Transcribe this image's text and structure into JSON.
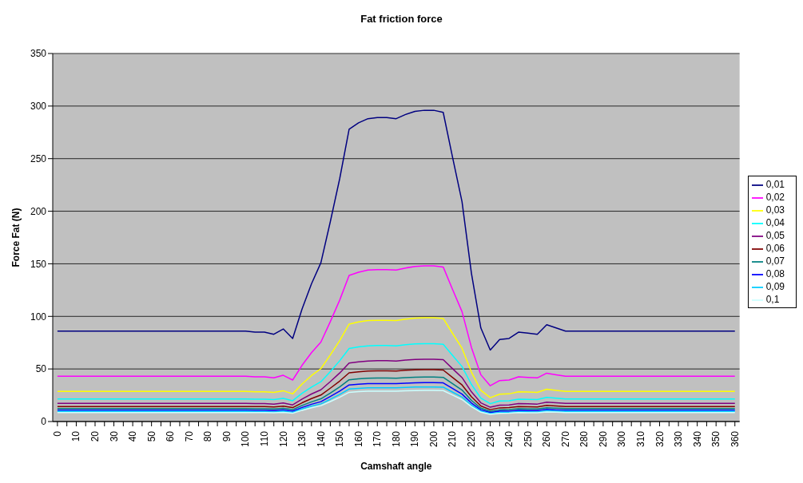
{
  "chart_data": {
    "type": "line",
    "title": "Fat friction force",
    "xlabel": "Camshaft angle",
    "ylabel": "Force Fat (N)",
    "categories": [
      "0",
      null,
      "10",
      null,
      "20",
      null,
      "30",
      null,
      "40",
      null,
      "50",
      null,
      "60",
      null,
      "70",
      null,
      "80",
      null,
      "90",
      null,
      "100",
      null,
      "110",
      null,
      "120",
      null,
      "130",
      null,
      "140",
      null,
      "150",
      null,
      "160",
      null,
      "170",
      null,
      "180",
      null,
      "190",
      null,
      "200",
      null,
      "210",
      null,
      "220",
      null,
      "230",
      null,
      "240",
      null,
      "250",
      null,
      "260",
      null,
      "270",
      null,
      "280",
      null,
      "290",
      null,
      "300",
      null,
      "310",
      null,
      "320",
      null,
      "330",
      null,
      "340",
      null,
      "350",
      null,
      "360"
    ],
    "ylim": [
      0,
      350
    ],
    "yticks": [
      0,
      50,
      100,
      150,
      200,
      250,
      300,
      350
    ],
    "grid": "y",
    "legend": "right",
    "marker": "none",
    "line_style": "solid",
    "series": [
      {
        "name": "0,01",
        "color": "#000080",
        "values": [
          86,
          86,
          86,
          86,
          86,
          86,
          86,
          86,
          86,
          86,
          86,
          86,
          86,
          86,
          86,
          86,
          86,
          86,
          86,
          86,
          86,
          85,
          85,
          83,
          88,
          79,
          107,
          131,
          151,
          190,
          231,
          278,
          284,
          288,
          289,
          289,
          288,
          292,
          295,
          296,
          296,
          294,
          251,
          209,
          141,
          89,
          68,
          78,
          79,
          85,
          84,
          83,
          92,
          89,
          86,
          86,
          86,
          86,
          86,
          86,
          86,
          86,
          86,
          86,
          86,
          86,
          86,
          86,
          86,
          86,
          86,
          86,
          86
        ]
      },
      {
        "name": "0,02",
        "color": "#ff00ff",
        "values": [
          43,
          43,
          43,
          43,
          43,
          43,
          43,
          43,
          43,
          43,
          43,
          43,
          43,
          43,
          43,
          43,
          43,
          43,
          43,
          43,
          43,
          42.5,
          42.5,
          41.5,
          44,
          39.5,
          53.5,
          65.5,
          75.5,
          95,
          115.5,
          139,
          142,
          144,
          144.5,
          144.5,
          144,
          146,
          147.5,
          148,
          148,
          147,
          125.5,
          104.5,
          70.5,
          44.5,
          34,
          39,
          39.5,
          42.5,
          42,
          41.5,
          46,
          44.5,
          43,
          43,
          43,
          43,
          43,
          43,
          43,
          43,
          43,
          43,
          43,
          43,
          43,
          43,
          43,
          43,
          43,
          43,
          43
        ]
      },
      {
        "name": "0,03",
        "color": "#ffff00",
        "values": [
          28.7,
          28.7,
          28.7,
          28.7,
          28.7,
          28.7,
          28.7,
          28.7,
          28.7,
          28.7,
          28.7,
          28.7,
          28.7,
          28.7,
          28.7,
          28.7,
          28.7,
          28.7,
          28.7,
          28.7,
          28.7,
          28.3,
          28.3,
          27.7,
          29.3,
          26.3,
          35.7,
          43.7,
          50.3,
          63.3,
          77,
          92.7,
          94.7,
          96,
          96.3,
          96.3,
          96,
          97.3,
          98.3,
          98.7,
          98.7,
          98,
          83.7,
          69.7,
          47,
          29.7,
          22.7,
          26,
          26.3,
          28.3,
          28,
          27.7,
          30.7,
          29.7,
          28.7,
          28.7,
          28.7,
          28.7,
          28.7,
          28.7,
          28.7,
          28.7,
          28.7,
          28.7,
          28.7,
          28.7,
          28.7,
          28.7,
          28.7,
          28.7,
          28.7,
          28.7,
          28.7
        ]
      },
      {
        "name": "0,04",
        "color": "#00ffff",
        "values": [
          21.5,
          21.5,
          21.5,
          21.5,
          21.5,
          21.5,
          21.5,
          21.5,
          21.5,
          21.5,
          21.5,
          21.5,
          21.5,
          21.5,
          21.5,
          21.5,
          21.5,
          21.5,
          21.5,
          21.5,
          21.5,
          21.3,
          21.3,
          20.8,
          22,
          19.8,
          26.8,
          32.8,
          37.8,
          47.5,
          57.8,
          69.5,
          71,
          72,
          72.3,
          72.3,
          72,
          73,
          73.8,
          74,
          74,
          73.5,
          62.8,
          52.3,
          35.3,
          22.3,
          17,
          19.5,
          19.8,
          21.3,
          21,
          20.8,
          23,
          22.3,
          21.5,
          21.5,
          21.5,
          21.5,
          21.5,
          21.5,
          21.5,
          21.5,
          21.5,
          21.5,
          21.5,
          21.5,
          21.5,
          21.5,
          21.5,
          21.5,
          21.5,
          21.5,
          21.5
        ]
      },
      {
        "name": "0,05",
        "color": "#800080",
        "values": [
          17.2,
          17.2,
          17.2,
          17.2,
          17.2,
          17.2,
          17.2,
          17.2,
          17.2,
          17.2,
          17.2,
          17.2,
          17.2,
          17.2,
          17.2,
          17.2,
          17.2,
          17.2,
          17.2,
          17.2,
          17.2,
          17,
          17,
          16.6,
          17.6,
          15.8,
          21.4,
          26.2,
          30.2,
          38,
          46.2,
          55.6,
          56.8,
          57.6,
          57.8,
          57.8,
          57.6,
          58.4,
          59,
          59.2,
          59.2,
          58.8,
          50.2,
          41.8,
          28.2,
          17.8,
          13.6,
          15.6,
          15.8,
          17,
          16.8,
          16.6,
          18.4,
          17.8,
          17.2,
          17.2,
          17.2,
          17.2,
          17.2,
          17.2,
          17.2,
          17.2,
          17.2,
          17.2,
          17.2,
          17.2,
          17.2,
          17.2,
          17.2,
          17.2,
          17.2,
          17.2,
          17.2
        ]
      },
      {
        "name": "0,06",
        "color": "#800000",
        "values": [
          14.3,
          14.3,
          14.3,
          14.3,
          14.3,
          14.3,
          14.3,
          14.3,
          14.3,
          14.3,
          14.3,
          14.3,
          14.3,
          14.3,
          14.3,
          14.3,
          14.3,
          14.3,
          14.3,
          14.3,
          14.3,
          14.2,
          14.2,
          13.8,
          14.7,
          13.2,
          17.8,
          21.8,
          25.2,
          31.7,
          38.5,
          46.3,
          47.3,
          48,
          48.2,
          48.2,
          48,
          48.7,
          49.2,
          49.3,
          49.3,
          49,
          41.8,
          34.8,
          23.5,
          14.8,
          11.3,
          13,
          13.2,
          14.2,
          14,
          13.8,
          15.3,
          14.8,
          14.3,
          14.3,
          14.3,
          14.3,
          14.3,
          14.3,
          14.3,
          14.3,
          14.3,
          14.3,
          14.3,
          14.3,
          14.3,
          14.3,
          14.3,
          14.3,
          14.3,
          14.3,
          14.3
        ]
      },
      {
        "name": "0,07",
        "color": "#008080",
        "values": [
          12.3,
          12.3,
          12.3,
          12.3,
          12.3,
          12.3,
          12.3,
          12.3,
          12.3,
          12.3,
          12.3,
          12.3,
          12.3,
          12.3,
          12.3,
          12.3,
          12.3,
          12.3,
          12.3,
          12.3,
          12.3,
          12.1,
          12.1,
          11.9,
          12.6,
          11.3,
          15.3,
          18.7,
          21.6,
          27.1,
          33,
          39.7,
          40.6,
          41.1,
          41.3,
          41.3,
          41.1,
          41.7,
          42.1,
          42.3,
          42.3,
          42,
          35.9,
          29.9,
          20.1,
          12.7,
          9.7,
          11.1,
          11.3,
          12.1,
          12,
          11.9,
          13.1,
          12.7,
          12.3,
          12.3,
          12.3,
          12.3,
          12.3,
          12.3,
          12.3,
          12.3,
          12.3,
          12.3,
          12.3,
          12.3,
          12.3,
          12.3,
          12.3,
          12.3,
          12.3,
          12.3,
          12.3
        ]
      },
      {
        "name": "0,08",
        "color": "#0000ff",
        "values": [
          10.8,
          10.8,
          10.8,
          10.8,
          10.8,
          10.8,
          10.8,
          10.8,
          10.8,
          10.8,
          10.8,
          10.8,
          10.8,
          10.8,
          10.8,
          10.8,
          10.8,
          10.8,
          10.8,
          10.8,
          10.8,
          10.6,
          10.6,
          10.4,
          11,
          9.9,
          13.4,
          16.4,
          18.9,
          23.8,
          28.9,
          34.8,
          35.5,
          36,
          36.1,
          36.1,
          36,
          36.5,
          36.9,
          37,
          37,
          36.8,
          31.4,
          26.1,
          17.6,
          11.1,
          8.5,
          9.8,
          9.9,
          10.6,
          10.5,
          10.4,
          11.5,
          11.1,
          10.8,
          10.8,
          10.8,
          10.8,
          10.8,
          10.8,
          10.8,
          10.8,
          10.8,
          10.8,
          10.8,
          10.8,
          10.8,
          10.8,
          10.8,
          10.8,
          10.8,
          10.8,
          10.8
        ]
      },
      {
        "name": "0,09",
        "color": "#00ccff",
        "values": [
          9.6,
          9.6,
          9.6,
          9.6,
          9.6,
          9.6,
          9.6,
          9.6,
          9.6,
          9.6,
          9.6,
          9.6,
          9.6,
          9.6,
          9.6,
          9.6,
          9.6,
          9.6,
          9.6,
          9.6,
          9.6,
          9.4,
          9.4,
          9.2,
          9.8,
          8.8,
          11.9,
          14.6,
          16.8,
          21.1,
          25.7,
          30.9,
          31.6,
          32,
          32.1,
          32.1,
          32,
          32.4,
          32.8,
          32.9,
          32.9,
          32.7,
          27.9,
          23.2,
          15.7,
          9.9,
          7.6,
          8.7,
          8.8,
          9.4,
          9.3,
          9.2,
          10.2,
          9.9,
          9.6,
          9.6,
          9.6,
          9.6,
          9.6,
          9.6,
          9.6,
          9.6,
          9.6,
          9.6,
          9.6,
          9.6,
          9.6,
          9.6,
          9.6,
          9.6,
          9.6,
          9.6,
          9.6
        ]
      },
      {
        "name": "0,1",
        "color": "#ccffff",
        "values": [
          8.6,
          8.6,
          8.6,
          8.6,
          8.6,
          8.6,
          8.6,
          8.6,
          8.6,
          8.6,
          8.6,
          8.6,
          8.6,
          8.6,
          8.6,
          8.6,
          8.6,
          8.6,
          8.6,
          8.6,
          8.6,
          8.5,
          8.5,
          8.3,
          8.8,
          7.9,
          10.7,
          13.1,
          15.1,
          19,
          23.1,
          27.8,
          28.4,
          28.8,
          28.9,
          28.9,
          28.8,
          29.2,
          29.5,
          29.6,
          29.6,
          29.4,
          25.1,
          20.9,
          14.1,
          8.9,
          6.8,
          7.8,
          7.9,
          8.5,
          8.4,
          8.3,
          9.2,
          8.9,
          8.6,
          8.6,
          8.6,
          8.6,
          8.6,
          8.6,
          8.6,
          8.6,
          8.6,
          8.6,
          8.6,
          8.6,
          8.6,
          8.6,
          8.6,
          8.6,
          8.6,
          8.6,
          8.6
        ]
      }
    ]
  }
}
